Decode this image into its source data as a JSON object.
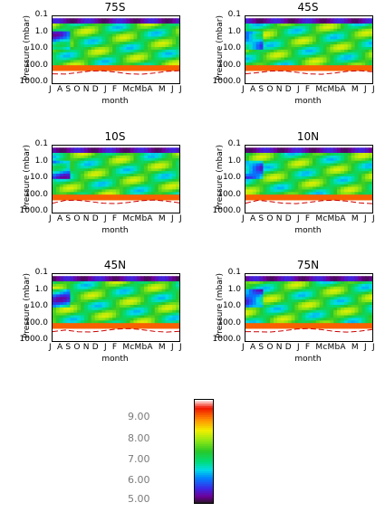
{
  "chart_data": {
    "type": "heatmap",
    "xlabel": "month",
    "ylabel": "Pressure (mbar)",
    "y_scale": "log",
    "yticks": [
      "0.1",
      "1.0",
      "10.0",
      "100.0",
      "1000.0"
    ],
    "x_tick_string": "J  A S O N D  J  F  McMbA  M  J  J",
    "panels": [
      {
        "title": "75S"
      },
      {
        "title": "45S"
      },
      {
        "title": "10S"
      },
      {
        "title": "10N"
      },
      {
        "title": "45N"
      },
      {
        "title": "75N"
      }
    ],
    "colorbar": {
      "ticks": [
        "9.00",
        "8.00",
        "7.00",
        "6.00",
        "5.00"
      ],
      "range": [
        5.0,
        9.6
      ],
      "colormap": "rainbow"
    }
  }
}
